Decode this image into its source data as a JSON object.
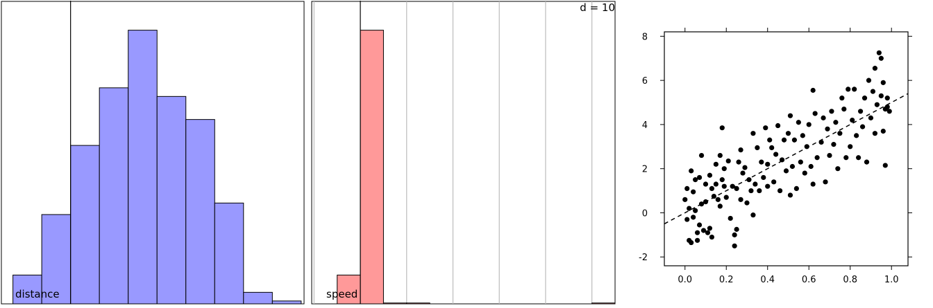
{
  "colors": {
    "distance_fill": "#9999ff",
    "speed_fill": "#ff9999",
    "bar_stroke": "#000000",
    "grid": "#bbbbbb",
    "point": "#000000",
    "fit_line": "#000000"
  },
  "chart_data": [
    {
      "type": "bar",
      "panel": "histogram",
      "label": "distance",
      "bins": [
        {
          "lo": -2.0,
          "hi": -1.0,
          "count": 10
        },
        {
          "lo": -1.0,
          "hi": 0.0,
          "count": 31
        },
        {
          "lo": 0.0,
          "hi": 1.0,
          "count": 55
        },
        {
          "lo": 1.0,
          "hi": 2.0,
          "count": 75
        },
        {
          "lo": 2.0,
          "hi": 3.0,
          "count": 95
        },
        {
          "lo": 3.0,
          "hi": 4.0,
          "count": 72
        },
        {
          "lo": 4.0,
          "hi": 5.0,
          "count": 64
        },
        {
          "lo": 5.0,
          "hi": 6.0,
          "count": 35
        },
        {
          "lo": 6.0,
          "hi": 7.0,
          "count": 4
        },
        {
          "lo": 7.0,
          "hi": 8.0,
          "count": 1
        }
      ],
      "xlim": [
        -2.4,
        8.1
      ],
      "ylim": [
        0,
        105
      ],
      "reference_line": 0,
      "grid": false,
      "ticks_shown": false
    },
    {
      "type": "bar",
      "panel": "histogram",
      "label": "speed",
      "annotation": "d = 10",
      "bins": [
        {
          "lo": -0.1,
          "hi": 0.0,
          "count": 10
        },
        {
          "lo": 0.0,
          "hi": 0.1,
          "count": 95
        },
        {
          "lo": 0.1,
          "hi": 0.2,
          "count": 0.3
        },
        {
          "lo": 0.2,
          "hi": 0.3,
          "count": 0.3
        },
        {
          "lo": 1.0,
          "hi": 1.1,
          "count": 0.3
        }
      ],
      "xlim": [
        -0.21,
        1.1
      ],
      "ylim": [
        0,
        105
      ],
      "reference_line": 0,
      "vertical_gridlines": [
        -0.2,
        0.2,
        0.4,
        0.6,
        0.8,
        1.0
      ],
      "grid": true,
      "ticks_shown": false
    },
    {
      "type": "scatter",
      "xlim": [
        -0.1,
        1.08
      ],
      "ylim": [
        -2.4,
        8.2
      ],
      "xticks": [
        "0.0",
        "0.2",
        "0.4",
        "0.6",
        "0.8",
        "1.0"
      ],
      "xtick_values": [
        0.0,
        0.2,
        0.4,
        0.6,
        0.8,
        1.0
      ],
      "yticks": [
        "-2",
        "0",
        "2",
        "4",
        "6",
        "8"
      ],
      "ytick_values": [
        -2,
        0,
        2,
        4,
        6,
        8
      ],
      "fit_line": {
        "style": "dashed",
        "intercept": 0.0,
        "slope": 5.0
      },
      "points": [
        {
          "x": 0.0,
          "y": 0.6
        },
        {
          "x": 0.01,
          "y": 1.1
        },
        {
          "x": 0.01,
          "y": -0.3
        },
        {
          "x": 0.02,
          "y": 0.2
        },
        {
          "x": 0.02,
          "y": -1.25
        },
        {
          "x": 0.03,
          "y": -1.35
        },
        {
          "x": 0.03,
          "y": 1.9
        },
        {
          "x": 0.04,
          "y": 0.95
        },
        {
          "x": 0.04,
          "y": -0.2
        },
        {
          "x": 0.05,
          "y": 1.5
        },
        {
          "x": 0.05,
          "y": 0.1
        },
        {
          "x": 0.06,
          "y": -0.9
        },
        {
          "x": 0.06,
          "y": -1.25
        },
        {
          "x": 0.07,
          "y": 1.6
        },
        {
          "x": 0.07,
          "y": -0.55
        },
        {
          "x": 0.08,
          "y": 0.4
        },
        {
          "x": 0.08,
          "y": 2.6
        },
        {
          "x": 0.09,
          "y": -0.8
        },
        {
          "x": 0.1,
          "y": 1.3
        },
        {
          "x": 0.1,
          "y": 0.5
        },
        {
          "x": 0.11,
          "y": -0.9
        },
        {
          "x": 0.12,
          "y": 1.7
        },
        {
          "x": 0.12,
          "y": -0.7
        },
        {
          "x": 0.13,
          "y": 1.1
        },
        {
          "x": 0.13,
          "y": -1.1
        },
        {
          "x": 0.14,
          "y": 0.75
        },
        {
          "x": 0.15,
          "y": 2.2
        },
        {
          "x": 0.15,
          "y": 1.3
        },
        {
          "x": 0.16,
          "y": 0.6
        },
        {
          "x": 0.17,
          "y": 2.6
        },
        {
          "x": 0.17,
          "y": 0.3
        },
        {
          "x": 0.18,
          "y": 3.85
        },
        {
          "x": 0.18,
          "y": 1.5
        },
        {
          "x": 0.19,
          "y": 2.0
        },
        {
          "x": 0.19,
          "y": 1.2
        },
        {
          "x": 0.2,
          "y": 0.7
        },
        {
          "x": 0.21,
          "y": 2.35
        },
        {
          "x": 0.22,
          "y": -0.25
        },
        {
          "x": 0.23,
          "y": 1.2
        },
        {
          "x": 0.24,
          "y": -1.0
        },
        {
          "x": 0.24,
          "y": -1.5
        },
        {
          "x": 0.25,
          "y": 1.1
        },
        {
          "x": 0.25,
          "y": -0.75
        },
        {
          "x": 0.26,
          "y": 2.3
        },
        {
          "x": 0.27,
          "y": 0.6
        },
        {
          "x": 0.27,
          "y": 2.85
        },
        {
          "x": 0.28,
          "y": 1.8
        },
        {
          "x": 0.29,
          "y": 2.05
        },
        {
          "x": 0.3,
          "y": 0.45
        },
        {
          "x": 0.31,
          "y": 1.5
        },
        {
          "x": 0.32,
          "y": 1.0
        },
        {
          "x": 0.33,
          "y": 3.6
        },
        {
          "x": 0.33,
          "y": -0.1
        },
        {
          "x": 0.34,
          "y": 1.3
        },
        {
          "x": 0.35,
          "y": 2.95
        },
        {
          "x": 0.36,
          "y": 1.0
        },
        {
          "x": 0.37,
          "y": 2.3
        },
        {
          "x": 0.38,
          "y": 1.6
        },
        {
          "x": 0.39,
          "y": 3.85
        },
        {
          "x": 0.4,
          "y": 1.2
        },
        {
          "x": 0.4,
          "y": 2.2
        },
        {
          "x": 0.41,
          "y": 3.3
        },
        {
          "x": 0.42,
          "y": 2.95
        },
        {
          "x": 0.43,
          "y": 1.4
        },
        {
          "x": 0.44,
          "y": 2.65
        },
        {
          "x": 0.45,
          "y": 3.95
        },
        {
          "x": 0.46,
          "y": 1.0
        },
        {
          "x": 0.47,
          "y": 2.4
        },
        {
          "x": 0.48,
          "y": 3.3
        },
        {
          "x": 0.49,
          "y": 1.9
        },
        {
          "x": 0.5,
          "y": 3.6
        },
        {
          "x": 0.51,
          "y": 0.8
        },
        {
          "x": 0.51,
          "y": 4.4
        },
        {
          "x": 0.52,
          "y": 2.1
        },
        {
          "x": 0.53,
          "y": 3.3
        },
        {
          "x": 0.54,
          "y": 1.1
        },
        {
          "x": 0.55,
          "y": 4.1
        },
        {
          "x": 0.56,
          "y": 2.3
        },
        {
          "x": 0.57,
          "y": 3.5
        },
        {
          "x": 0.58,
          "y": 1.8
        },
        {
          "x": 0.59,
          "y": 3.0
        },
        {
          "x": 0.6,
          "y": 4.0
        },
        {
          "x": 0.61,
          "y": 2.1
        },
        {
          "x": 0.62,
          "y": 5.55
        },
        {
          "x": 0.62,
          "y": 1.3
        },
        {
          "x": 0.63,
          "y": 4.5
        },
        {
          "x": 0.64,
          "y": 2.5
        },
        {
          "x": 0.66,
          "y": 3.2
        },
        {
          "x": 0.67,
          "y": 4.3
        },
        {
          "x": 0.68,
          "y": 1.4
        },
        {
          "x": 0.69,
          "y": 3.8
        },
        {
          "x": 0.7,
          "y": 2.6
        },
        {
          "x": 0.71,
          "y": 4.6
        },
        {
          "x": 0.72,
          "y": 3.1
        },
        {
          "x": 0.73,
          "y": 4.1
        },
        {
          "x": 0.74,
          "y": 2.0
        },
        {
          "x": 0.75,
          "y": 3.6
        },
        {
          "x": 0.76,
          "y": 5.2
        },
        {
          "x": 0.77,
          "y": 4.7
        },
        {
          "x": 0.78,
          "y": 2.5
        },
        {
          "x": 0.79,
          "y": 5.6
        },
        {
          "x": 0.8,
          "y": 3.0
        },
        {
          "x": 0.81,
          "y": 4.2
        },
        {
          "x": 0.82,
          "y": 5.6
        },
        {
          "x": 0.83,
          "y": 3.5
        },
        {
          "x": 0.84,
          "y": 2.5
        },
        {
          "x": 0.85,
          "y": 4.6
        },
        {
          "x": 0.86,
          "y": 3.9
        },
        {
          "x": 0.87,
          "y": 5.2
        },
        {
          "x": 0.88,
          "y": 2.3
        },
        {
          "x": 0.89,
          "y": 6.0
        },
        {
          "x": 0.9,
          "y": 4.3
        },
        {
          "x": 0.91,
          "y": 5.5
        },
        {
          "x": 0.92,
          "y": 3.6
        },
        {
          "x": 0.92,
          "y": 6.55
        },
        {
          "x": 0.93,
          "y": 4.9
        },
        {
          "x": 0.94,
          "y": 7.25
        },
        {
          "x": 0.95,
          "y": 5.3
        },
        {
          "x": 0.95,
          "y": 7.0
        },
        {
          "x": 0.96,
          "y": 3.7
        },
        {
          "x": 0.96,
          "y": 5.9
        },
        {
          "x": 0.97,
          "y": 4.7
        },
        {
          "x": 0.97,
          "y": 2.15
        },
        {
          "x": 0.98,
          "y": 5.2
        },
        {
          "x": 0.98,
          "y": 4.8
        },
        {
          "x": 0.99,
          "y": 4.6
        }
      ]
    }
  ]
}
